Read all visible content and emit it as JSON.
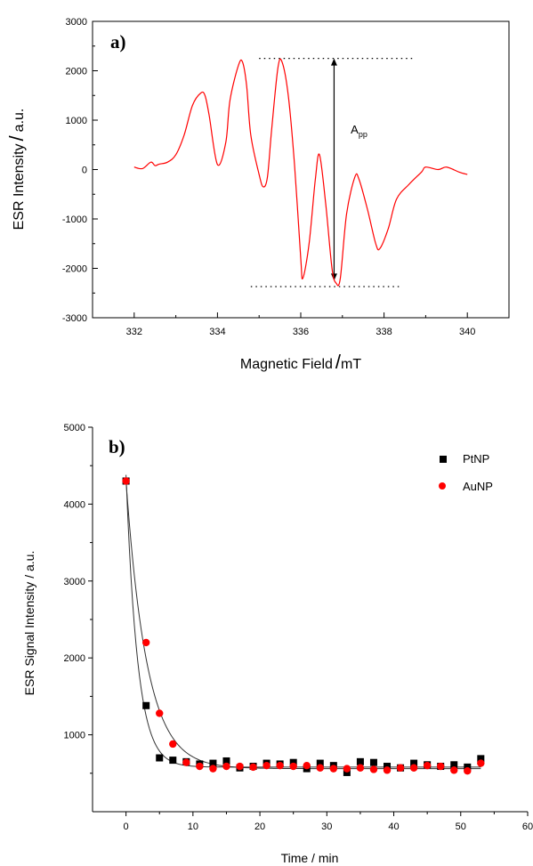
{
  "chart_data": [
    {
      "type": "line",
      "panel_label": "a)",
      "title": "",
      "xlabel": "Magnetic Field",
      "xunit": "mT",
      "ylabel": "ESR Intensity",
      "yunit": "a.u.",
      "xlim": [
        331,
        341
      ],
      "ylim": [
        -3000,
        3000
      ],
      "xticks": [
        332,
        334,
        336,
        338,
        340
      ],
      "yticks": [
        -3000,
        -2000,
        -1000,
        0,
        1000,
        2000,
        3000
      ],
      "grid": false,
      "series": [
        {
          "color": "#ff0000",
          "x": [
            332.0,
            332.2,
            332.4,
            332.5,
            332.6,
            332.8,
            333.0,
            333.2,
            333.4,
            333.6,
            333.7,
            333.8,
            334.0,
            334.2,
            334.3,
            334.5,
            334.6,
            334.7,
            334.8,
            335.0,
            335.1,
            335.2,
            335.3,
            335.45,
            335.55,
            335.7,
            335.85,
            336.0,
            336.05,
            336.2,
            336.35,
            336.45,
            336.6,
            336.75,
            336.85,
            336.95,
            337.1,
            337.3,
            337.4,
            337.6,
            337.8,
            337.9,
            338.1,
            338.3,
            338.6,
            338.9,
            339.0,
            339.3,
            339.5,
            339.8,
            340.0
          ],
          "y": [
            50,
            20,
            150,
            80,
            110,
            150,
            300,
            700,
            1300,
            1550,
            1500,
            1100,
            100,
            550,
            1400,
            2100,
            2180,
            1700,
            700,
            -100,
            -350,
            -150,
            800,
            2050,
            2180,
            1500,
            100,
            -1800,
            -2200,
            -1500,
            -200,
            300,
            -700,
            -2000,
            -2300,
            -2200,
            -900,
            -150,
            -200,
            -800,
            -1500,
            -1600,
            -1200,
            -600,
            -300,
            -50,
            50,
            0,
            50,
            -50,
            -100
          ]
        }
      ],
      "annotations": [
        {
          "text": "A",
          "subscript": "pp",
          "x": 337.2,
          "y": 730
        },
        {
          "type": "arrow",
          "x": 336.8,
          "y_from": 2250,
          "y_to": -2250
        },
        {
          "type": "dotted-line",
          "x_from": 335.0,
          "x_to": 338.7,
          "y": 2250
        },
        {
          "type": "dotted-line",
          "x_from": 334.8,
          "x_to": 338.4,
          "y": -2370
        }
      ]
    },
    {
      "type": "scatter",
      "panel_label": "b)",
      "title": "",
      "xlabel": "Time / min",
      "ylabel": "ESR Signal Intensity / a.u.",
      "xlim": [
        -5,
        60
      ],
      "ylim": [
        0,
        5000
      ],
      "xticks": [
        0,
        10,
        20,
        30,
        40,
        50,
        60
      ],
      "yticks": [
        1000,
        2000,
        3000,
        4000,
        5000
      ],
      "grid": false,
      "legend_position": "top-right",
      "series": [
        {
          "name": "PtNP",
          "marker": "square",
          "color": "#000000",
          "x": [
            0,
            3,
            5,
            7,
            9,
            11,
            13,
            15,
            17,
            19,
            21,
            23,
            25,
            27,
            29,
            31,
            33,
            35,
            37,
            39,
            41,
            43,
            45,
            47,
            49,
            51,
            53
          ],
          "y": [
            4300,
            1380,
            700,
            670,
            650,
            620,
            630,
            660,
            570,
            590,
            630,
            620,
            640,
            560,
            630,
            600,
            510,
            650,
            640,
            590,
            570,
            630,
            610,
            590,
            610,
            580,
            690
          ],
          "fit": {
            "A": 3800,
            "k": 0.58,
            "c": 580
          }
        },
        {
          "name": "AuNP",
          "marker": "circle",
          "color": "#ff0000",
          "x": [
            0,
            3,
            5,
            7,
            9,
            11,
            13,
            15,
            17,
            19,
            21,
            23,
            25,
            27,
            29,
            31,
            33,
            35,
            37,
            39,
            41,
            43,
            45,
            47,
            49,
            51,
            53
          ],
          "y": [
            4300,
            2200,
            1280,
            880,
            640,
            590,
            560,
            590,
            590,
            580,
            600,
            600,
            590,
            600,
            570,
            560,
            560,
            570,
            550,
            540,
            570,
            570,
            600,
            590,
            540,
            530,
            630
          ],
          "fit": {
            "A": 3740,
            "k": 0.32,
            "c": 560
          }
        }
      ]
    }
  ]
}
